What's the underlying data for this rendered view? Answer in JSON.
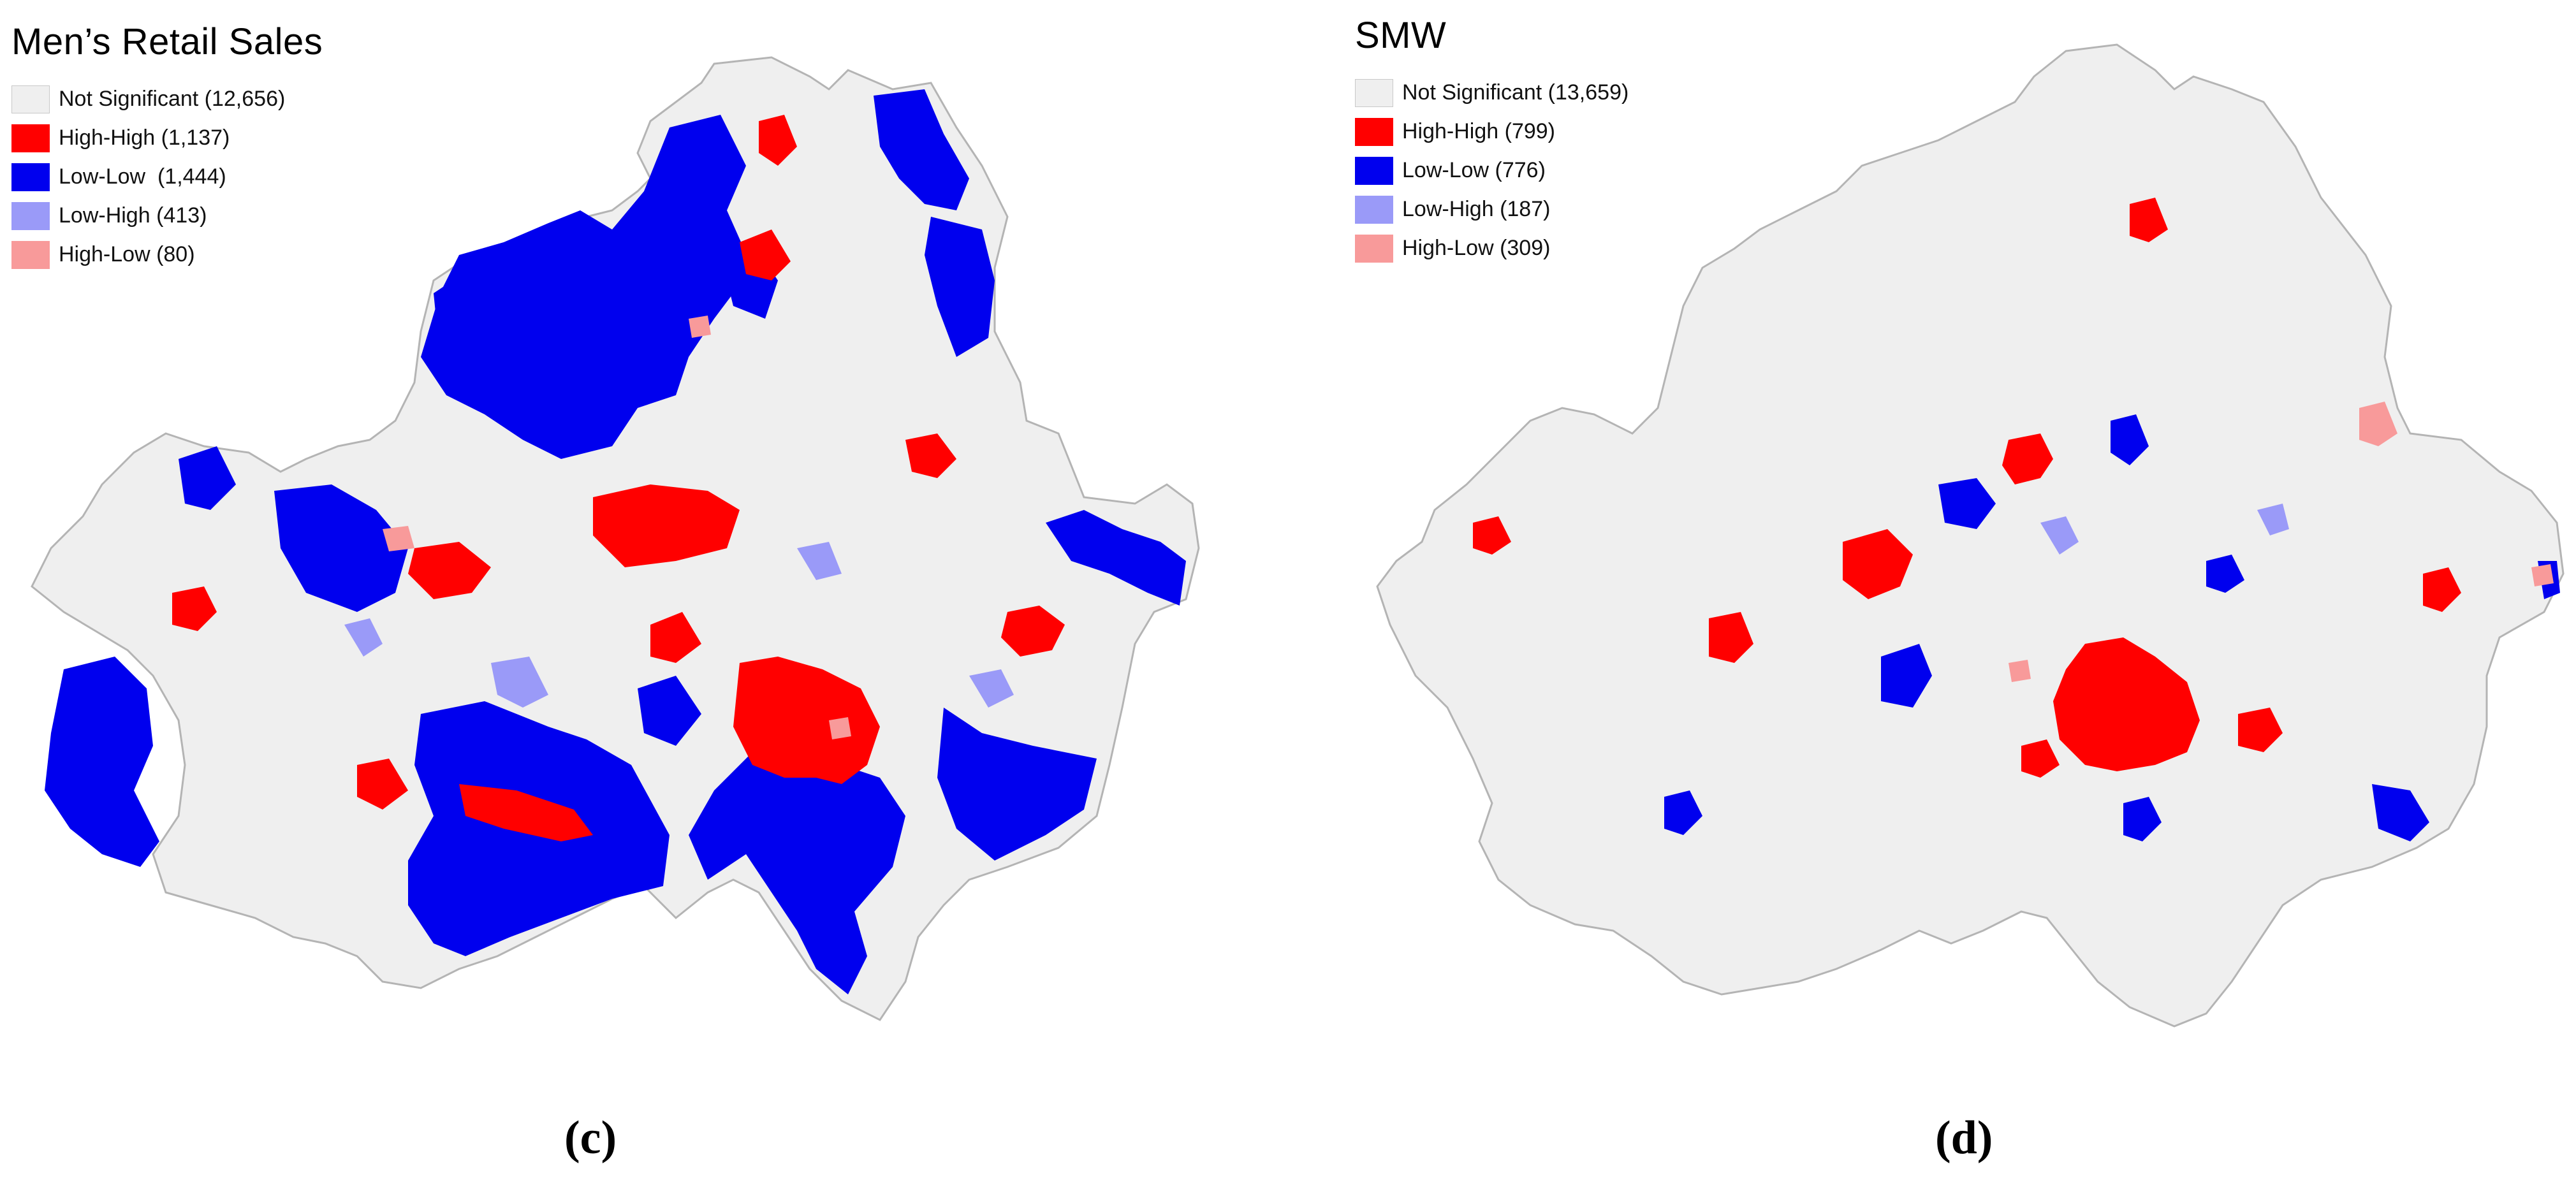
{
  "panels": [
    {
      "title": "Men’s Retail Sales",
      "label": "(c)",
      "legend": [
        {
          "label": "Not Significant (12,656)",
          "color": "#efefef",
          "category": "not-significant"
        },
        {
          "label": "High-High (1,137)",
          "color": "#ff0000",
          "category": "high-high"
        },
        {
          "label": "Low-Low  (1,444)",
          "color": "#0000ee",
          "category": "low-low"
        },
        {
          "label": "Low-High (413)",
          "color": "#9a9af8",
          "category": "low-high"
        },
        {
          "label": "High-Low (80)",
          "color": "#f89a9a",
          "category": "high-low"
        }
      ]
    },
    {
      "title": "SMW",
      "label": "(d)",
      "legend": [
        {
          "label": "Not Significant (13,659)",
          "color": "#efefef",
          "category": "not-significant"
        },
        {
          "label": "High-High (799)",
          "color": "#ff0000",
          "category": "high-high"
        },
        {
          "label": "Low-Low (776)",
          "color": "#0000ee",
          "category": "low-low"
        },
        {
          "label": "Low-High (187)",
          "color": "#9a9af8",
          "category": "low-high"
        },
        {
          "label": "High-Low (309)",
          "color": "#f89a9a",
          "category": "high-low"
        }
      ]
    }
  ],
  "colors": {
    "not_significant": "#efefef",
    "boundary": "#b4b4b4",
    "high_high": "#ff0000",
    "low_low": "#0000ee",
    "low_high": "#9a9af8",
    "high_low": "#f89a9a"
  }
}
